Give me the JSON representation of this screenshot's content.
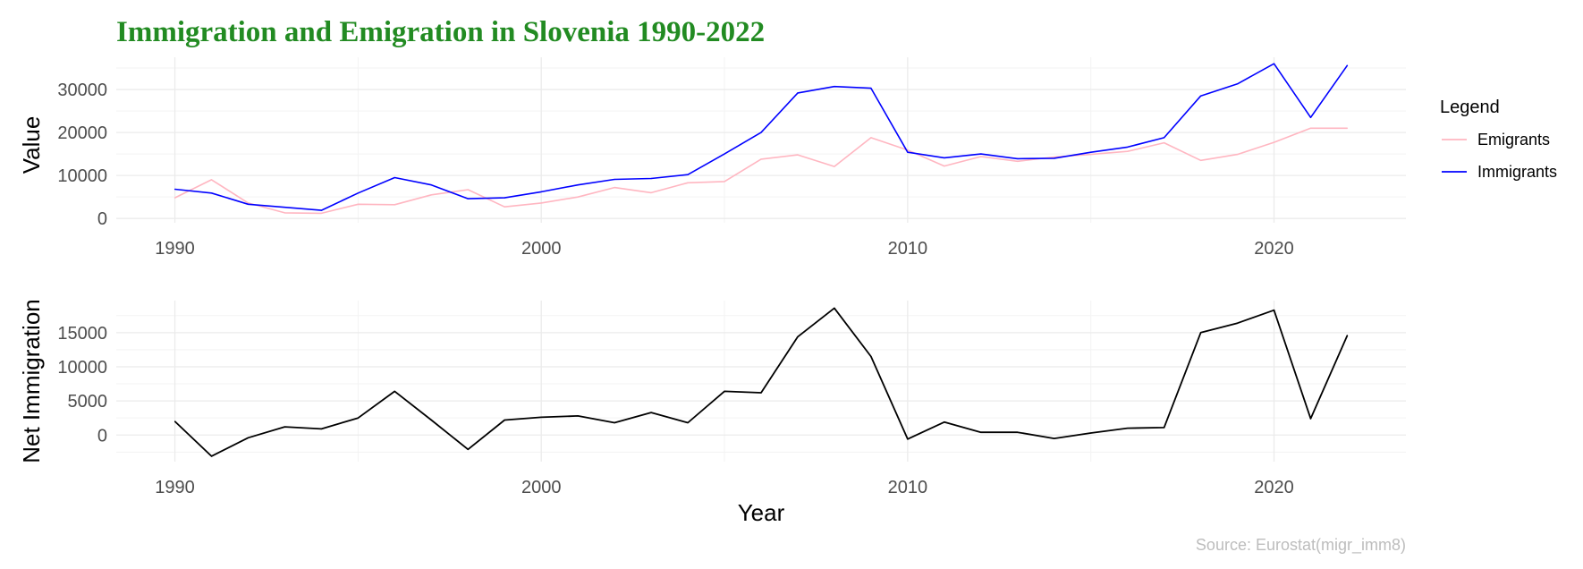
{
  "title": "Immigration and Emigration in Slovenia 1990-2022",
  "caption": "Source: Eurostat(migr_imm8)",
  "colors": {
    "title": "#228b22",
    "emigrants": "#ffb6c1",
    "immigrants": "#0000ff",
    "net": "#000000"
  },
  "legend": {
    "title": "Legend",
    "position": "right"
  },
  "chart_data": [
    {
      "type": "line",
      "ylabel": "Value",
      "xlabel": "",
      "xlim": [
        1988.4,
        2023.6
      ],
      "ylim": [
        -1000,
        37500
      ],
      "x_ticks": [
        "1990",
        "2000",
        "2010",
        "2020"
      ],
      "y_ticks": [
        "0",
        "10000",
        "20000",
        "30000"
      ],
      "grid": true,
      "x": [
        1990,
        1991,
        1992,
        1993,
        1994,
        1995,
        1996,
        1997,
        1998,
        1999,
        2000,
        2001,
        2002,
        2003,
        2004,
        2005,
        2006,
        2007,
        2008,
        2009,
        2010,
        2011,
        2012,
        2013,
        2014,
        2015,
        2016,
        2017,
        2018,
        2019,
        2020,
        2021,
        2022
      ],
      "series": [
        {
          "name": "Emigrants",
          "color": "#ffb6c1",
          "values": [
            4800,
            9000,
            3600,
            1300,
            1200,
            3300,
            3200,
            5500,
            6700,
            2700,
            3600,
            5000,
            7200,
            6000,
            8300,
            8600,
            13800,
            14800,
            12100,
            18800,
            15900,
            12200,
            14400,
            13300,
            14300,
            14900,
            15600,
            17600,
            13500,
            14900,
            17700,
            21000,
            21000
          ]
        },
        {
          "name": "Immigrants",
          "color": "#0000ff",
          "values": [
            6800,
            5900,
            3300,
            2600,
            1900,
            5900,
            9500,
            7800,
            4600,
            4800,
            6200,
            7800,
            9100,
            9300,
            10200,
            15000,
            20000,
            29200,
            30700,
            30300,
            15400,
            14100,
            15000,
            13900,
            14000,
            15400,
            16600,
            18800,
            28500,
            31300,
            36000,
            23500,
            35600
          ]
        }
      ]
    },
    {
      "type": "line",
      "ylabel": "Net Immigration",
      "xlabel": "Year",
      "xlim": [
        1988.4,
        2023.6
      ],
      "ylim": [
        -3900,
        19700
      ],
      "x_ticks": [
        "1990",
        "2000",
        "2010",
        "2020"
      ],
      "y_ticks": [
        "0",
        "5000",
        "10000",
        "15000"
      ],
      "grid": true,
      "x": [
        1990,
        1991,
        1992,
        1993,
        1994,
        1995,
        1996,
        1997,
        1998,
        1999,
        2000,
        2001,
        2002,
        2003,
        2004,
        2005,
        2006,
        2007,
        2008,
        2009,
        2010,
        2011,
        2012,
        2013,
        2014,
        2015,
        2016,
        2017,
        2018,
        2019,
        2020,
        2021,
        2022
      ],
      "series": [
        {
          "name": "",
          "color": "#000000",
          "values": [
            2000,
            -3100,
            -400,
            1200,
            900,
            2500,
            6400,
            2200,
            -2100,
            2200,
            2600,
            2800,
            1800,
            3300,
            1800,
            6400,
            6200,
            14400,
            18600,
            11500,
            -600,
            1900,
            400,
            400,
            -500,
            300,
            1000,
            1100,
            15000,
            16400,
            18300,
            2400,
            14600
          ]
        }
      ]
    }
  ]
}
